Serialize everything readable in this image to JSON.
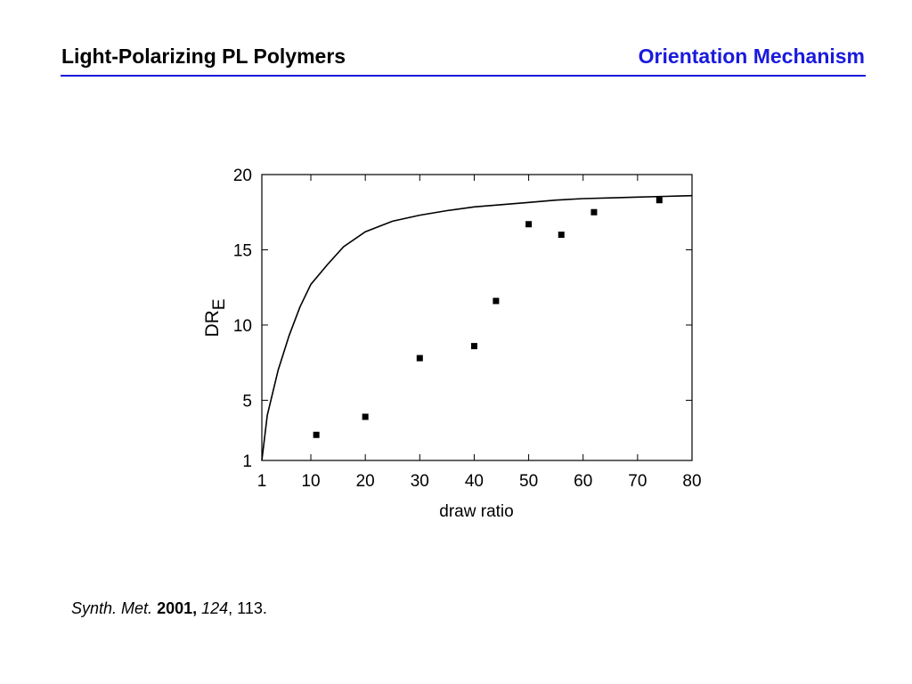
{
  "header": {
    "title_left": "Light-Polarizing PL Polymers",
    "title_right": "Orientation Mechanism",
    "accent_color": "#1a1adc"
  },
  "chart_data": {
    "type": "scatter",
    "xlabel": "draw ratio",
    "ylabel_main": "DR",
    "ylabel_sub": "E",
    "xlim": [
      1,
      80
    ],
    "ylim": [
      1,
      20
    ],
    "x_ticks": [
      1,
      10,
      20,
      30,
      40,
      50,
      60,
      70,
      80
    ],
    "y_ticks": [
      1,
      5,
      10,
      15,
      20
    ],
    "grid": false,
    "series": [
      {
        "kind": "points",
        "x": [
          11,
          20,
          30,
          40,
          44,
          50,
          56,
          62,
          74
        ],
        "y": [
          2.7,
          3.9,
          7.8,
          8.6,
          11.6,
          16.7,
          16.0,
          17.5,
          18.3
        ]
      },
      {
        "kind": "curve",
        "x": [
          1,
          2,
          4,
          6,
          8,
          10,
          13,
          16,
          20,
          25,
          30,
          35,
          40,
          45,
          50,
          55,
          60,
          65,
          70,
          75,
          80
        ],
        "y": [
          1,
          4.0,
          7.0,
          9.3,
          11.2,
          12.7,
          14.0,
          15.2,
          16.2,
          16.9,
          17.3,
          17.6,
          17.85,
          18.0,
          18.15,
          18.3,
          18.4,
          18.45,
          18.5,
          18.55,
          18.6
        ]
      }
    ]
  },
  "citation": {
    "journal": "Synth. Met.",
    "year": "2001,",
    "volume": "124",
    "pages": ", 113."
  }
}
